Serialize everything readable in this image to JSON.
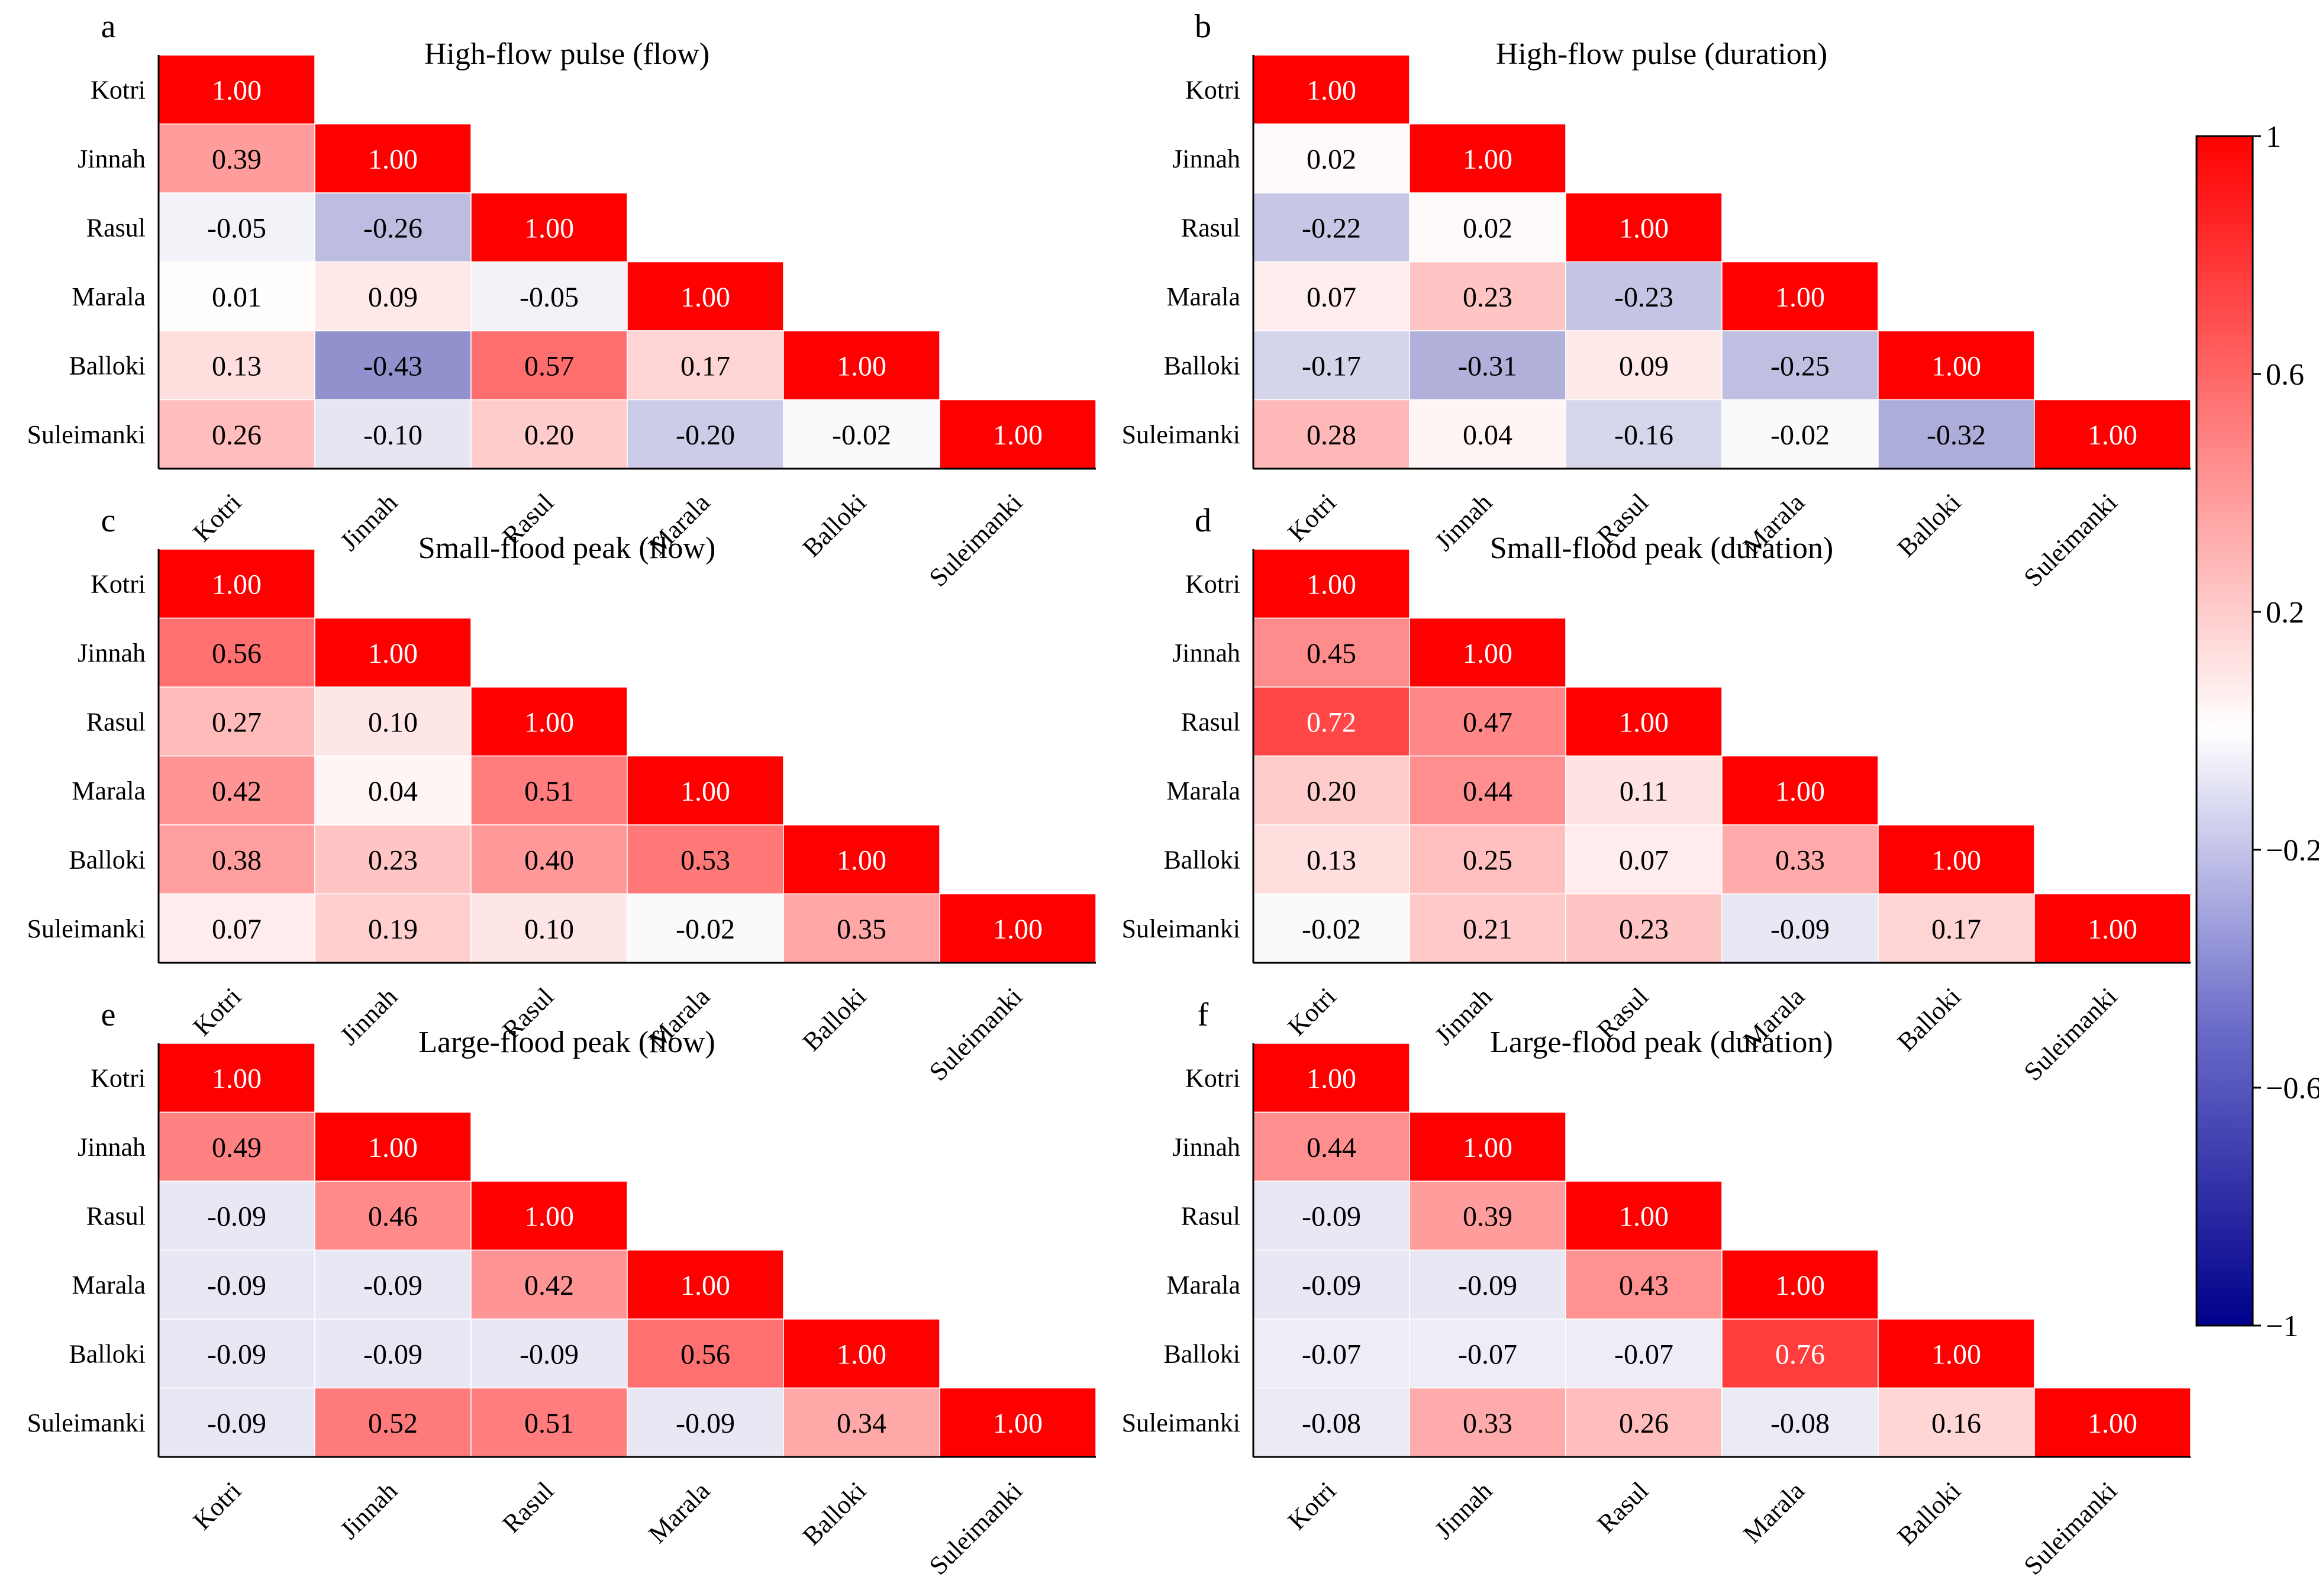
{
  "chart_data": [
    {
      "type": "heatmap",
      "panel": "a",
      "title": "High-flow pulse (flow)",
      "labels": [
        "Kotri",
        "Jinnah",
        "Rasul",
        "Marala",
        "Balloki",
        "Suleimanki"
      ],
      "values": [
        [
          1.0
        ],
        [
          0.39,
          1.0
        ],
        [
          -0.05,
          -0.26,
          1.0
        ],
        [
          0.01,
          0.09,
          -0.05,
          1.0
        ],
        [
          0.13,
          -0.43,
          0.57,
          0.17,
          1.0
        ],
        [
          0.26,
          -0.1,
          0.2,
          -0.2,
          -0.02,
          1.0
        ]
      ]
    },
    {
      "type": "heatmap",
      "panel": "b",
      "title": "High-flow pulse (duration)",
      "labels": [
        "Kotri",
        "Jinnah",
        "Rasul",
        "Marala",
        "Balloki",
        "Suleimanki"
      ],
      "values": [
        [
          1.0
        ],
        [
          0.02,
          1.0
        ],
        [
          -0.22,
          0.02,
          1.0
        ],
        [
          0.07,
          0.23,
          -0.23,
          1.0
        ],
        [
          -0.17,
          -0.31,
          0.09,
          -0.25,
          1.0
        ],
        [
          0.28,
          0.04,
          -0.16,
          -0.02,
          -0.32,
          1.0
        ]
      ]
    },
    {
      "type": "heatmap",
      "panel": "c",
      "title": "Small-flood peak (flow)",
      "labels": [
        "Kotri",
        "Jinnah",
        "Rasul",
        "Marala",
        "Balloki",
        "Suleimanki"
      ],
      "values": [
        [
          1.0
        ],
        [
          0.56,
          1.0
        ],
        [
          0.27,
          0.1,
          1.0
        ],
        [
          0.42,
          0.04,
          0.51,
          1.0
        ],
        [
          0.38,
          0.23,
          0.4,
          0.53,
          1.0
        ],
        [
          0.07,
          0.19,
          0.1,
          -0.02,
          0.35,
          1.0
        ]
      ]
    },
    {
      "type": "heatmap",
      "panel": "d",
      "title": "Small-flood peak (duration)",
      "labels": [
        "Kotri",
        "Jinnah",
        "Rasul",
        "Marala",
        "Balloki",
        "Suleimanki"
      ],
      "values": [
        [
          1.0
        ],
        [
          0.45,
          1.0
        ],
        [
          0.72,
          0.47,
          1.0
        ],
        [
          0.2,
          0.44,
          0.11,
          1.0
        ],
        [
          0.13,
          0.25,
          0.07,
          0.33,
          1.0
        ],
        [
          -0.02,
          0.21,
          0.23,
          -0.09,
          0.17,
          1.0
        ]
      ]
    },
    {
      "type": "heatmap",
      "panel": "e",
      "title": "Large-flood peak (flow)",
      "labels": [
        "Kotri",
        "Jinnah",
        "Rasul",
        "Marala",
        "Balloki",
        "Suleimanki"
      ],
      "values": [
        [
          1.0
        ],
        [
          0.49,
          1.0
        ],
        [
          -0.09,
          0.46,
          1.0
        ],
        [
          -0.09,
          -0.09,
          0.42,
          1.0
        ],
        [
          -0.09,
          -0.09,
          -0.09,
          0.56,
          1.0
        ],
        [
          -0.09,
          0.52,
          0.51,
          -0.09,
          0.34,
          1.0
        ]
      ]
    },
    {
      "type": "heatmap",
      "panel": "f",
      "title": "Large-flood peak (duration)",
      "labels": [
        "Kotri",
        "Jinnah",
        "Rasul",
        "Marala",
        "Balloki",
        "Suleimanki"
      ],
      "values": [
        [
          1.0
        ],
        [
          0.44,
          1.0
        ],
        [
          -0.09,
          0.39,
          1.0
        ],
        [
          -0.09,
          -0.09,
          0.43,
          1.0
        ],
        [
          -0.07,
          -0.07,
          -0.07,
          0.76,
          1.0
        ],
        [
          -0.08,
          0.33,
          0.26,
          -0.08,
          0.16,
          1.0
        ]
      ]
    }
  ],
  "colorbar": {
    "min": -1,
    "max": 1,
    "ticks": [
      "1",
      "0.6",
      "0.2",
      "−0.2",
      "−0.6",
      "−1"
    ],
    "colors": {
      "low": "#00008b",
      "mid": "#ffffff",
      "high": "#ff0000"
    }
  }
}
